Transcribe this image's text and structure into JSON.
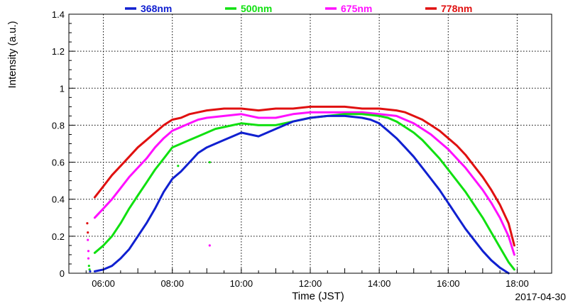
{
  "chart_data": {
    "type": "line",
    "title": "",
    "xlabel": "Time (JST)",
    "ylabel": "Intensity (a.u.)",
    "date_label": "2017-04-30",
    "xlim": [
      "05:00",
      "19:00"
    ],
    "ylim": [
      0,
      1.4
    ],
    "x_ticks": [
      "06:00",
      "08:00",
      "10:00",
      "12:00",
      "14:00",
      "16:00",
      "18:00"
    ],
    "y_ticks": [
      "0",
      "0.2",
      "0.4",
      "0.6",
      "0.8",
      "1",
      "1.2",
      "1.4"
    ],
    "grid": true,
    "legend_position": "top",
    "series": [
      {
        "name": "368nm",
        "color": "#1020d0",
        "points": [
          [
            "05:45",
            0.01
          ],
          [
            "06:00",
            0.02
          ],
          [
            "06:15",
            0.04
          ],
          [
            "06:30",
            0.08
          ],
          [
            "06:45",
            0.13
          ],
          [
            "07:00",
            0.2
          ],
          [
            "07:15",
            0.27
          ],
          [
            "07:30",
            0.35
          ],
          [
            "07:45",
            0.44
          ],
          [
            "08:00",
            0.51
          ],
          [
            "08:15",
            0.55
          ],
          [
            "08:30",
            0.6
          ],
          [
            "08:45",
            0.65
          ],
          [
            "09:00",
            0.68
          ],
          [
            "09:15",
            0.7
          ],
          [
            "09:30",
            0.72
          ],
          [
            "09:45",
            0.74
          ],
          [
            "10:00",
            0.76
          ],
          [
            "10:15",
            0.75
          ],
          [
            "10:30",
            0.74
          ],
          [
            "10:45",
            0.76
          ],
          [
            "11:00",
            0.78
          ],
          [
            "11:15",
            0.8
          ],
          [
            "11:30",
            0.82
          ],
          [
            "11:45",
            0.83
          ],
          [
            "12:00",
            0.84
          ],
          [
            "12:30",
            0.85
          ],
          [
            "13:00",
            0.85
          ],
          [
            "13:30",
            0.84
          ],
          [
            "13:45",
            0.83
          ],
          [
            "14:00",
            0.81
          ],
          [
            "14:15",
            0.77
          ],
          [
            "14:30",
            0.73
          ],
          [
            "14:45",
            0.68
          ],
          [
            "15:00",
            0.63
          ],
          [
            "15:15",
            0.57
          ],
          [
            "15:30",
            0.51
          ],
          [
            "15:45",
            0.45
          ],
          [
            "16:00",
            0.38
          ],
          [
            "16:15",
            0.31
          ],
          [
            "16:30",
            0.24
          ],
          [
            "16:45",
            0.18
          ],
          [
            "17:00",
            0.12
          ],
          [
            "17:15",
            0.07
          ],
          [
            "17:30",
            0.03
          ],
          [
            "17:45",
            0.0
          ]
        ]
      },
      {
        "name": "500nm",
        "color": "#10e010",
        "points": [
          [
            "05:45",
            0.11
          ],
          [
            "06:00",
            0.15
          ],
          [
            "06:15",
            0.2
          ],
          [
            "06:30",
            0.27
          ],
          [
            "06:45",
            0.35
          ],
          [
            "07:00",
            0.42
          ],
          [
            "07:15",
            0.49
          ],
          [
            "07:30",
            0.56
          ],
          [
            "07:45",
            0.62
          ],
          [
            "08:00",
            0.68
          ],
          [
            "08:15",
            0.7
          ],
          [
            "08:30",
            0.72
          ],
          [
            "08:45",
            0.74
          ],
          [
            "09:00",
            0.76
          ],
          [
            "09:15",
            0.78
          ],
          [
            "09:30",
            0.79
          ],
          [
            "09:45",
            0.8
          ],
          [
            "10:00",
            0.81
          ],
          [
            "10:30",
            0.8
          ],
          [
            "11:00",
            0.8
          ],
          [
            "11:30",
            0.82
          ],
          [
            "12:00",
            0.84
          ],
          [
            "12:30",
            0.85
          ],
          [
            "13:00",
            0.86
          ],
          [
            "13:30",
            0.86
          ],
          [
            "14:00",
            0.85
          ],
          [
            "14:15",
            0.84
          ],
          [
            "14:30",
            0.82
          ],
          [
            "14:45",
            0.79
          ],
          [
            "15:00",
            0.76
          ],
          [
            "15:15",
            0.72
          ],
          [
            "15:30",
            0.67
          ],
          [
            "15:45",
            0.62
          ],
          [
            "16:00",
            0.56
          ],
          [
            "16:15",
            0.5
          ],
          [
            "16:30",
            0.44
          ],
          [
            "16:45",
            0.37
          ],
          [
            "17:00",
            0.3
          ],
          [
            "17:15",
            0.22
          ],
          [
            "17:30",
            0.14
          ],
          [
            "17:45",
            0.06
          ],
          [
            "17:55",
            0.02
          ]
        ]
      },
      {
        "name": "675nm",
        "color": "#ff10ff",
        "points": [
          [
            "05:45",
            0.3
          ],
          [
            "06:00",
            0.35
          ],
          [
            "06:15",
            0.4
          ],
          [
            "06:30",
            0.46
          ],
          [
            "06:45",
            0.52
          ],
          [
            "07:00",
            0.57
          ],
          [
            "07:15",
            0.62
          ],
          [
            "07:30",
            0.68
          ],
          [
            "07:45",
            0.73
          ],
          [
            "08:00",
            0.77
          ],
          [
            "08:15",
            0.79
          ],
          [
            "08:30",
            0.81
          ],
          [
            "08:45",
            0.83
          ],
          [
            "09:00",
            0.84
          ],
          [
            "09:30",
            0.85
          ],
          [
            "10:00",
            0.86
          ],
          [
            "10:30",
            0.84
          ],
          [
            "11:00",
            0.84
          ],
          [
            "11:30",
            0.86
          ],
          [
            "12:00",
            0.87
          ],
          [
            "12:30",
            0.87
          ],
          [
            "13:00",
            0.87
          ],
          [
            "13:30",
            0.87
          ],
          [
            "14:00",
            0.86
          ],
          [
            "14:30",
            0.85
          ],
          [
            "14:45",
            0.83
          ],
          [
            "15:00",
            0.81
          ],
          [
            "15:15",
            0.78
          ],
          [
            "15:30",
            0.75
          ],
          [
            "15:45",
            0.71
          ],
          [
            "16:00",
            0.67
          ],
          [
            "16:15",
            0.62
          ],
          [
            "16:30",
            0.57
          ],
          [
            "16:45",
            0.51
          ],
          [
            "17:00",
            0.45
          ],
          [
            "17:15",
            0.38
          ],
          [
            "17:30",
            0.3
          ],
          [
            "17:45",
            0.2
          ],
          [
            "17:55",
            0.1
          ]
        ]
      },
      {
        "name": "778nm",
        "color": "#e01010",
        "points": [
          [
            "05:45",
            0.41
          ],
          [
            "06:00",
            0.47
          ],
          [
            "06:15",
            0.53
          ],
          [
            "06:30",
            0.58
          ],
          [
            "06:45",
            0.63
          ],
          [
            "07:00",
            0.68
          ],
          [
            "07:15",
            0.72
          ],
          [
            "07:30",
            0.76
          ],
          [
            "07:45",
            0.8
          ],
          [
            "08:00",
            0.83
          ],
          [
            "08:15",
            0.84
          ],
          [
            "08:30",
            0.86
          ],
          [
            "08:45",
            0.87
          ],
          [
            "09:00",
            0.88
          ],
          [
            "09:30",
            0.89
          ],
          [
            "10:00",
            0.89
          ],
          [
            "10:30",
            0.88
          ],
          [
            "11:00",
            0.89
          ],
          [
            "11:30",
            0.89
          ],
          [
            "12:00",
            0.9
          ],
          [
            "12:30",
            0.9
          ],
          [
            "13:00",
            0.9
          ],
          [
            "13:30",
            0.89
          ],
          [
            "14:00",
            0.89
          ],
          [
            "14:30",
            0.88
          ],
          [
            "14:45",
            0.87
          ],
          [
            "15:00",
            0.85
          ],
          [
            "15:15",
            0.83
          ],
          [
            "15:30",
            0.8
          ],
          [
            "15:45",
            0.77
          ],
          [
            "16:00",
            0.73
          ],
          [
            "16:15",
            0.69
          ],
          [
            "16:30",
            0.64
          ],
          [
            "16:45",
            0.58
          ],
          [
            "17:00",
            0.52
          ],
          [
            "17:15",
            0.45
          ],
          [
            "17:30",
            0.37
          ],
          [
            "17:45",
            0.27
          ],
          [
            "17:55",
            0.15
          ]
        ]
      }
    ],
    "stray_points": [
      {
        "series": "778nm",
        "x": "05:32",
        "y": 0.27
      },
      {
        "series": "778nm",
        "x": "05:33",
        "y": 0.22
      },
      {
        "series": "675nm",
        "x": "05:33",
        "y": 0.18
      },
      {
        "series": "675nm",
        "x": "05:34",
        "y": 0.12
      },
      {
        "series": "675nm",
        "x": "05:34",
        "y": 0.08
      },
      {
        "series": "500nm",
        "x": "05:35",
        "y": 0.04
      },
      {
        "series": "500nm",
        "x": "05:36",
        "y": 0.02
      },
      {
        "series": "368nm",
        "x": "05:37",
        "y": 0.01
      },
      {
        "series": "675nm",
        "x": "09:05",
        "y": 0.15
      },
      {
        "series": "500nm",
        "x": "09:05",
        "y": 0.6
      },
      {
        "series": "500nm",
        "x": "08:10",
        "y": 0.58
      }
    ]
  }
}
